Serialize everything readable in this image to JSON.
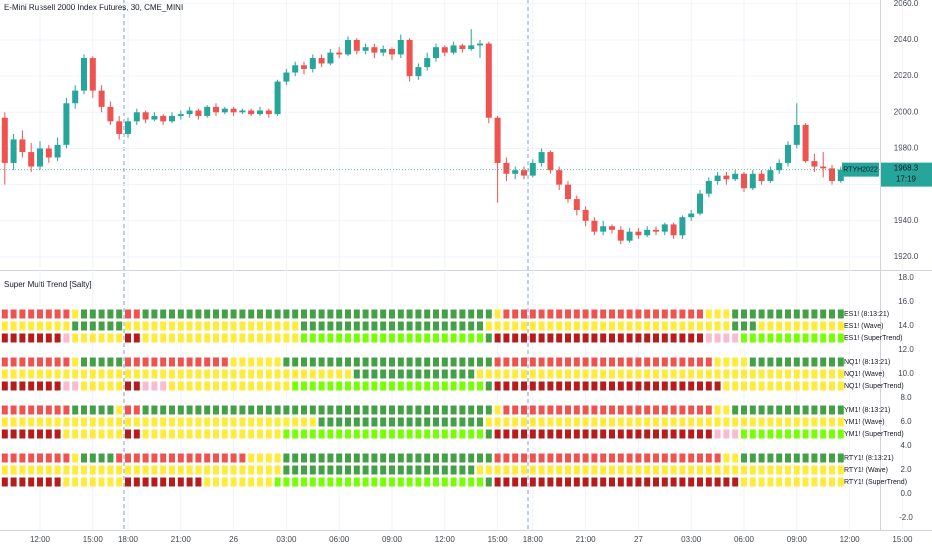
{
  "chart_data": [
    {
      "type": "candlestick",
      "title": "E-Mini Russell 2000 Index Futures, 30, CME_MINI",
      "categories": [
        null,
        null,
        null,
        null,
        "12:00",
        null,
        null,
        null,
        null,
        null,
        "15:00",
        null,
        null,
        null,
        "18:00",
        null,
        null,
        null,
        null,
        null,
        "21:00",
        null,
        null,
        null,
        null,
        null,
        "26",
        null,
        null,
        null,
        null,
        null,
        "03:00",
        null,
        null,
        null,
        null,
        null,
        "06:00",
        null,
        null,
        null,
        null,
        null,
        "09:00",
        null,
        null,
        null,
        null,
        null,
        "12:00",
        null,
        null,
        null,
        null,
        null,
        "15:00",
        null,
        null,
        null,
        "18:00",
        null,
        null,
        null,
        null,
        null,
        "21:00",
        null,
        null,
        null,
        null,
        null,
        "27",
        null,
        null,
        null,
        null,
        null,
        "03:00",
        null,
        null,
        null,
        null,
        null,
        "06:00",
        null,
        null,
        null,
        null,
        null,
        "09:00",
        null,
        null,
        null,
        null,
        null,
        "12:00",
        null,
        null,
        null,
        null,
        null,
        "15:00"
      ],
      "open": [
        1997,
        1972,
        1985,
        1978,
        1970,
        1980,
        1975,
        1982,
        2005,
        2012,
        2030,
        2012,
        2003,
        1995,
        1988,
        1995,
        2000,
        1996,
        1998,
        1995,
        1998,
        1999,
        2001,
        1998,
        2003,
        2000,
        2002,
        2000,
        2001,
        1999,
        2001,
        1999,
        2017,
        2022,
        2026,
        2024,
        2030,
        2027,
        2033,
        2032,
        2040,
        2034,
        2036,
        2033,
        2035,
        2032,
        2040,
        2020,
        2025,
        2030,
        2036,
        2033,
        2037,
        2035,
        2037,
        2038,
        1997,
        1972,
        1966,
        1968,
        1965,
        1972,
        1978,
        1968,
        1960,
        1952,
        1946,
        1940,
        1934,
        1937,
        1935,
        1929,
        1934,
        1932,
        1935,
        1934,
        1938,
        1932,
        1942,
        1944,
        1955,
        1962,
        1965,
        1963,
        1966,
        1958,
        1966,
        1962,
        1968,
        1972,
        1982,
        1993,
        1973,
        1970,
        1969,
        1962,
        null,
        null,
        null,
        null,
        null,
        null,
        null
      ],
      "high": [
        2000,
        1988,
        1990,
        1983,
        1984,
        1982,
        1986,
        2008,
        2015,
        2032,
        2031,
        2015,
        2006,
        1998,
        1997,
        2002,
        2001,
        2000,
        1999,
        2000,
        2001,
        2003,
        2002,
        2004,
        2005,
        2003,
        2003,
        2002,
        2002,
        2003,
        2002,
        2018,
        2024,
        2028,
        2028,
        2032,
        2032,
        2035,
        2036,
        2042,
        2041,
        2038,
        2038,
        2037,
        2036,
        2043,
        2041,
        2027,
        2033,
        2038,
        2037,
        2039,
        2038,
        2046,
        2040,
        2039,
        1998,
        1975,
        1970,
        1970,
        1974,
        1980,
        1979,
        1970,
        1962,
        1954,
        1948,
        1942,
        1940,
        1938,
        1937,
        1936,
        1936,
        1937,
        1937,
        1939,
        1939,
        1943,
        1946,
        1957,
        1964,
        1967,
        1967,
        1968,
        1967,
        1968,
        1968,
        1970,
        1974,
        1984,
        2005,
        1994,
        1977,
        1978,
        1971,
        1970,
        null,
        null,
        null,
        null,
        null,
        null,
        null
      ],
      "low": [
        1960,
        1968,
        1975,
        1967,
        1968,
        1972,
        1973,
        1980,
        2002,
        2010,
        2008,
        2000,
        1993,
        1985,
        1986,
        1993,
        1994,
        1995,
        1993,
        1994,
        1996,
        1997,
        1996,
        1997,
        1998,
        1999,
        1998,
        1999,
        1998,
        1998,
        1997,
        1998,
        2015,
        2020,
        2021,
        2022,
        2025,
        2026,
        2030,
        2031,
        2032,
        2032,
        2030,
        2031,
        2029,
        2030,
        2017,
        2018,
        2023,
        2028,
        2031,
        2032,
        2033,
        2034,
        2030,
        1994,
        1950,
        1962,
        1963,
        1963,
        1964,
        1970,
        1966,
        1957,
        1950,
        1943,
        1937,
        1932,
        1932,
        1933,
        1927,
        1928,
        1930,
        1931,
        1932,
        1932,
        1930,
        1930,
        1940,
        1943,
        1953,
        1960,
        1960,
        1962,
        1956,
        1957,
        1960,
        1961,
        1966,
        1970,
        1980,
        1972,
        1967,
        1964,
        1960,
        1961,
        null,
        null,
        null,
        null,
        null,
        null,
        null
      ],
      "close": [
        1972,
        1985,
        1978,
        1970,
        1980,
        1975,
        1982,
        2005,
        2012,
        2030,
        2012,
        2003,
        1995,
        1988,
        1995,
        2000,
        1996,
        1998,
        1995,
        1998,
        1999,
        2001,
        1998,
        2003,
        2000,
        2002,
        2000,
        2001,
        1999,
        2001,
        1999,
        2017,
        2022,
        2026,
        2024,
        2030,
        2027,
        2033,
        2032,
        2040,
        2034,
        2036,
        2033,
        2035,
        2032,
        2040,
        2020,
        2025,
        2030,
        2036,
        2033,
        2037,
        2035,
        2037,
        2038,
        1997,
        1972,
        1966,
        1968,
        1965,
        1972,
        1978,
        1968,
        1960,
        1952,
        1946,
        1940,
        1934,
        1937,
        1935,
        1929,
        1934,
        1932,
        1935,
        1934,
        1938,
        1932,
        1942,
        1944,
        1955,
        1962,
        1965,
        1963,
        1966,
        1958,
        1966,
        1962,
        1968,
        1972,
        1982,
        1993,
        1973,
        1970,
        1969,
        1962,
        1968.3,
        null,
        null,
        null,
        null,
        null,
        null,
        null
      ],
      "up_color": "#26a69a",
      "down_color": "#ef5350",
      "ylim": [
        1913.9,
        2062.1
      ],
      "yticks": [
        {
          "value": 2060,
          "label": "2060.0"
        },
        {
          "value": 2040,
          "label": "2040.0"
        },
        {
          "value": 2020,
          "label": "2020.0"
        },
        {
          "value": 2000,
          "label": "2000.0"
        },
        {
          "value": 1980,
          "label": "1980.0"
        },
        {
          "value": 1960,
          "label": "1960.0"
        },
        {
          "value": 1940,
          "label": "1940.0"
        },
        {
          "value": 1920,
          "label": "1920.0"
        }
      ],
      "grid": true,
      "last_price": 1968.3,
      "symbol": "RTYH2022",
      "countdown": "17:19"
    },
    {
      "type": "squares",
      "title": "Super Multi Trend [Salty]",
      "palette": {
        "R": "#ef5350",
        "G": "#43a047",
        "Y": "#ffeb3b",
        "D": "#b71c1c",
        "P": "#f8bbd0",
        "L": "#76ff03"
      },
      "series": [
        {
          "name": "ES1! (8:13:21)",
          "value": 15,
          "label_color": "#787b86",
          "states": "RRRRRRRRYGGGGGRRGGGGGGGGGGGGGGGGGGGGGGGGGGGGGGGGGGGGGGGGYRRRRRRRRRRRRRRRRRRRRRRRYYYGGGGGGGGGGGGG"
        },
        {
          "name": "ES1! (Wave)",
          "value": 14,
          "label_color": "#787b86",
          "states": "YYYYYYYYGGGGGGYYYYYYYYYYYYYYYYYYYYGGGGGGGGGGGGGGGGGGGGGYYYYYYYYYYYYYYYYYYYYYYYYYYYYGGGYYYYYYYYYY"
        },
        {
          "name": "ES1! (SuperTrend)",
          "value": 13,
          "label_color": "#76ff03",
          "states": "DDDDDDDPYYYYYYDDYYYYYYYYYYYYYYYYYYLLLLLLLLLLLLLLLLLLLLLGDDDDDDDDDDDDDDDDDDDDDDDDPPPPLLLLLLLLLLLL"
        },
        {
          "name": "NQ1! (8:13:21)",
          "value": 11,
          "label_color": "#787b86",
          "states": "RRRRRRRRYGGGGGRRRRRRRRRRRRYYYYYYGGGGGGGGGGGGGGGGGGGGGGGGRRRRRRRRRRRRRRRRRRRRRRRRRYYYYGGGGGGGGGGG"
        },
        {
          "name": "NQ1! (Wave)",
          "value": 10,
          "label_color": "#787b86",
          "states": "YYYYYYYYYYYYYYYYYYYYYYYYYYYYYYYYYYYYYYYYGGGGGGGGGGGGGGYYYYYYYYYYYYYYYYYYYYYYYYYYYYYYYYYYYYYYYYYY"
        },
        {
          "name": "NQ1! (SuperTrend)",
          "value": 9,
          "label_color": "#ffeb3b",
          "states": "DDDDDDDPPYYYYYDDPPPYYYYYYYYYYYYYYLLLLLLLLLLLLLLLLLLLLLLGDDDDDDDDDDDDDDDDDDDDDDDDDDYYYYYYYYYYYYYY"
        },
        {
          "name": "YM1! (8:13:21)",
          "value": 7,
          "label_color": "#787b86",
          "states": "RRRRRRRRGGGGGYRRGGGGGGGGGGGGGGGGGGGGGGGGGGGGGGGGGGGGGGGGYRRRRRRRRRRRRRRRRRRRRRRRRYYGGGGGGGGGGGGG"
        },
        {
          "name": "YM1! (Wave)",
          "value": 6,
          "label_color": "#787b86",
          "states": "YYYYYYYYYYYYYYYYYYYYYYYYYYYYYYYYYYYYGGGGGGGGGGGGGGGGGGGYYYYYYYYYYYYYYYYYYYYYYYYYYYYYYYYYYYYYYYYY"
        },
        {
          "name": "YM1! (SuperTrend)",
          "value": 5,
          "label_color": "#76ff03",
          "states": "DDDDDDDYYYYYYYDDYYYYYYYYYYYYYYYYLLLLLLLLLLLLLLLLLLLLLLLGDDDDDDDDDDDDDDDDDDDDDDDDDPPPLLLLLLLLLLLL"
        },
        {
          "name": "RTY1! (8:13:21)",
          "value": 3,
          "label_color": "#787b86",
          "states": "RRRRRRRRYGGGGRRRRRRRRRRRRRRRYYYYGGGGGGGGGGGGGGGGGGGGGGGGRRRRRRRRRRRRRRRRRRRRRRRRRRYYGGGGGGGGGGGG"
        },
        {
          "name": "RTY1! (Wave)",
          "value": 2,
          "label_color": "#787b86",
          "states": "YYYYYYYYYYYYYYYYYYYYYYYYYYYYYYYYGGGGGGGGGGGGGGGGGGGGGGYYYYYYYYYYYYYYYYYYYYYYYYYYYYYYYYYYYYYYYYYY"
        },
        {
          "name": "RTY1! (SuperTrend)",
          "value": 1,
          "label_color": "#ffeb3b",
          "states": "DDDDDDDYYYYYYYDDDDDDDDDYYYYYYYYLLLLLLLLLLLLLLLLLLLLLLLLGDDDDDDDDDDDDDDDDDDDDDDDDDDDDYYYYYYYYYYYY"
        }
      ],
      "ylim": [
        -3,
        18.5
      ],
      "yticks": [
        {
          "value": 18,
          "label": "18.0"
        },
        {
          "value": 16,
          "label": "16.0"
        },
        {
          "value": 14,
          "label": "14.0"
        },
        {
          "value": 12,
          "label": "12.0"
        },
        {
          "value": 10,
          "label": "10.0"
        },
        {
          "value": 8,
          "label": "8.0"
        },
        {
          "value": 6,
          "label": "6.0"
        },
        {
          "value": 4,
          "label": "4.0"
        },
        {
          "value": 2,
          "label": "2.0"
        },
        {
          "value": 0,
          "label": "0.0"
        },
        {
          "value": -2,
          "label": "-2.0"
        }
      ]
    }
  ]
}
